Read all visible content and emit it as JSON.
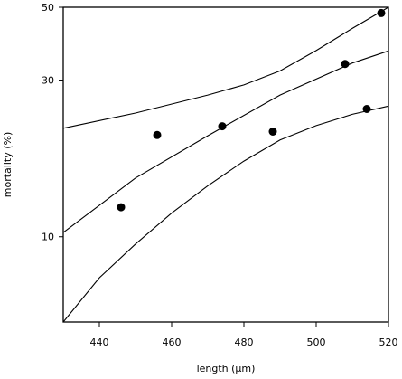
{
  "chart_data": {
    "type": "scatter",
    "xlabel": "length (μm)",
    "ylabel": "mortality (%)",
    "x_range": [
      430,
      520
    ],
    "y_range": [
      5.5,
      50
    ],
    "y_scale": "log",
    "grid": false,
    "x_ticks": [
      {
        "value": 440,
        "label": "440"
      },
      {
        "value": 460,
        "label": "460"
      },
      {
        "value": 480,
        "label": "480"
      },
      {
        "value": 500,
        "label": "500"
      },
      {
        "value": 520,
        "label": "520"
      }
    ],
    "y_ticks": [
      {
        "value": 10,
        "label": "10"
      },
      {
        "value": 30,
        "label": "30"
      },
      {
        "value": 50,
        "label": "50"
      }
    ],
    "points": [
      {
        "x": 446,
        "y": 12.3
      },
      {
        "x": 456,
        "y": 20.4
      },
      {
        "x": 474,
        "y": 21.7
      },
      {
        "x": 488,
        "y": 20.9
      },
      {
        "x": 508,
        "y": 33.6
      },
      {
        "x": 514,
        "y": 24.5
      },
      {
        "x": 518,
        "y": 48.0
      }
    ],
    "fit_line": [
      {
        "x": 430,
        "y": 10.3
      },
      {
        "x": 450,
        "y": 15.1
      },
      {
        "x": 470,
        "y": 20.3
      },
      {
        "x": 490,
        "y": 27.0
      },
      {
        "x": 510,
        "y": 33.8
      },
      {
        "x": 520,
        "y": 36.8
      }
    ],
    "upper_band": [
      {
        "x": 430,
        "y": 21.4
      },
      {
        "x": 450,
        "y": 23.8
      },
      {
        "x": 470,
        "y": 27.0
      },
      {
        "x": 480,
        "y": 29.0
      },
      {
        "x": 490,
        "y": 32.0
      },
      {
        "x": 500,
        "y": 36.9
      },
      {
        "x": 510,
        "y": 43.1
      },
      {
        "x": 520,
        "y": 50.0
      }
    ],
    "lower_band": [
      {
        "x": 430,
        "y": 5.5
      },
      {
        "x": 440,
        "y": 7.5
      },
      {
        "x": 450,
        "y": 9.5
      },
      {
        "x": 460,
        "y": 11.8
      },
      {
        "x": 470,
        "y": 14.3
      },
      {
        "x": 480,
        "y": 17.0
      },
      {
        "x": 490,
        "y": 19.7
      },
      {
        "x": 500,
        "y": 21.8
      },
      {
        "x": 510,
        "y": 23.6
      },
      {
        "x": 520,
        "y": 25.0
      }
    ]
  }
}
